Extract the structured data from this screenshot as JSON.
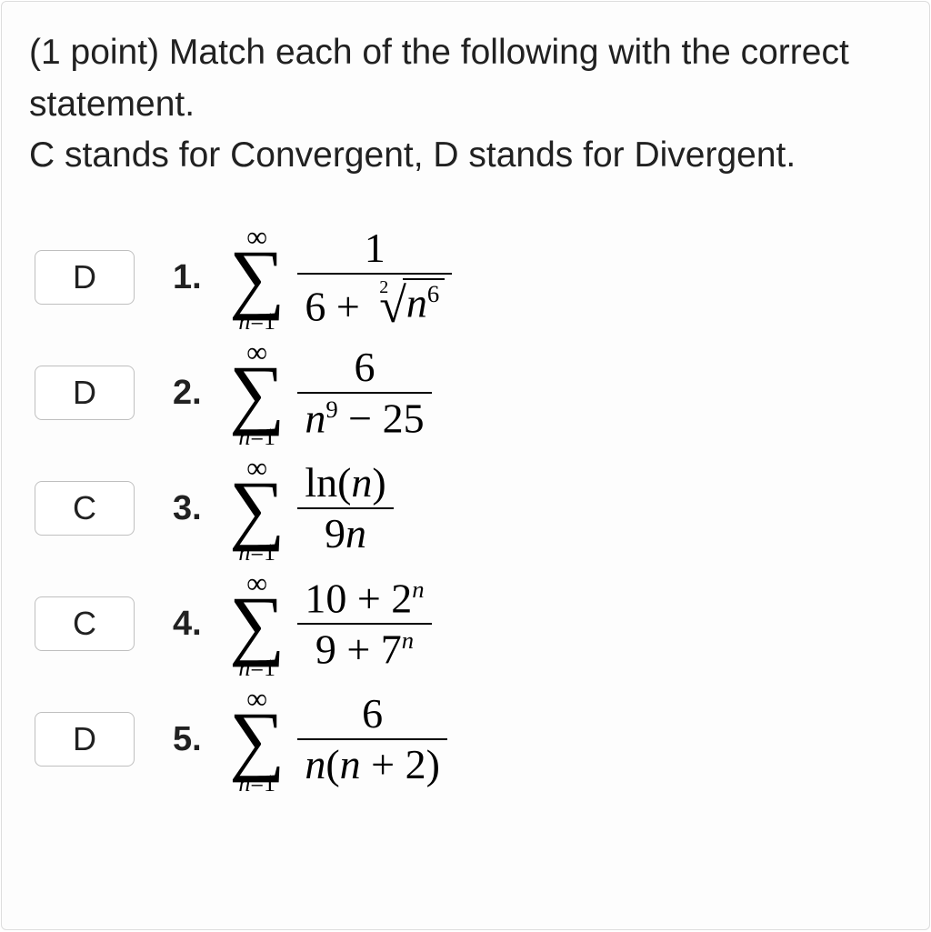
{
  "prompt": {
    "line1": "(1 point) Match each of the following with the correct statement.",
    "line2": "C stands for Convergent, D stands for Divergent."
  },
  "style": {
    "body_fontsize": 39,
    "formula_fontsize": 46,
    "text_color": "#212121",
    "formula_color": "#000000",
    "border_color": "#dddddd",
    "input_border_color": "#bfbfbf",
    "background": "#fdfdfd"
  },
  "sum_limits": {
    "lower": "n=1",
    "upper": "∞"
  },
  "items": [
    {
      "answer": "D",
      "number": "1.",
      "frac": {
        "num_plain": "1",
        "den_type": "root",
        "den_before": "6 + ",
        "root_index": "2",
        "radicand_base": "n",
        "radicand_exp": "6"
      }
    },
    {
      "answer": "D",
      "number": "2.",
      "frac": {
        "num_plain": "6",
        "den_type": "poly",
        "den_base": "n",
        "den_exp": "9",
        "den_after": " − 25"
      }
    },
    {
      "answer": "C",
      "number": "3.",
      "frac": {
        "num_type": "ln",
        "num_fn": "ln",
        "num_arg": "n",
        "den_plain_before": "9",
        "den_plain_var": "n"
      }
    },
    {
      "answer": "C",
      "number": "4.",
      "frac": {
        "num_before": "10 + ",
        "num_base": "2",
        "num_supvar": "n",
        "den_before": "9 + ",
        "den_base": "7",
        "den_supvar": "n"
      }
    },
    {
      "answer": "D",
      "number": "5.",
      "frac": {
        "num_plain": "6",
        "den_type": "paren",
        "den_var1": "n",
        "den_paren_var": "n",
        "den_paren_after": " + 2"
      }
    }
  ]
}
